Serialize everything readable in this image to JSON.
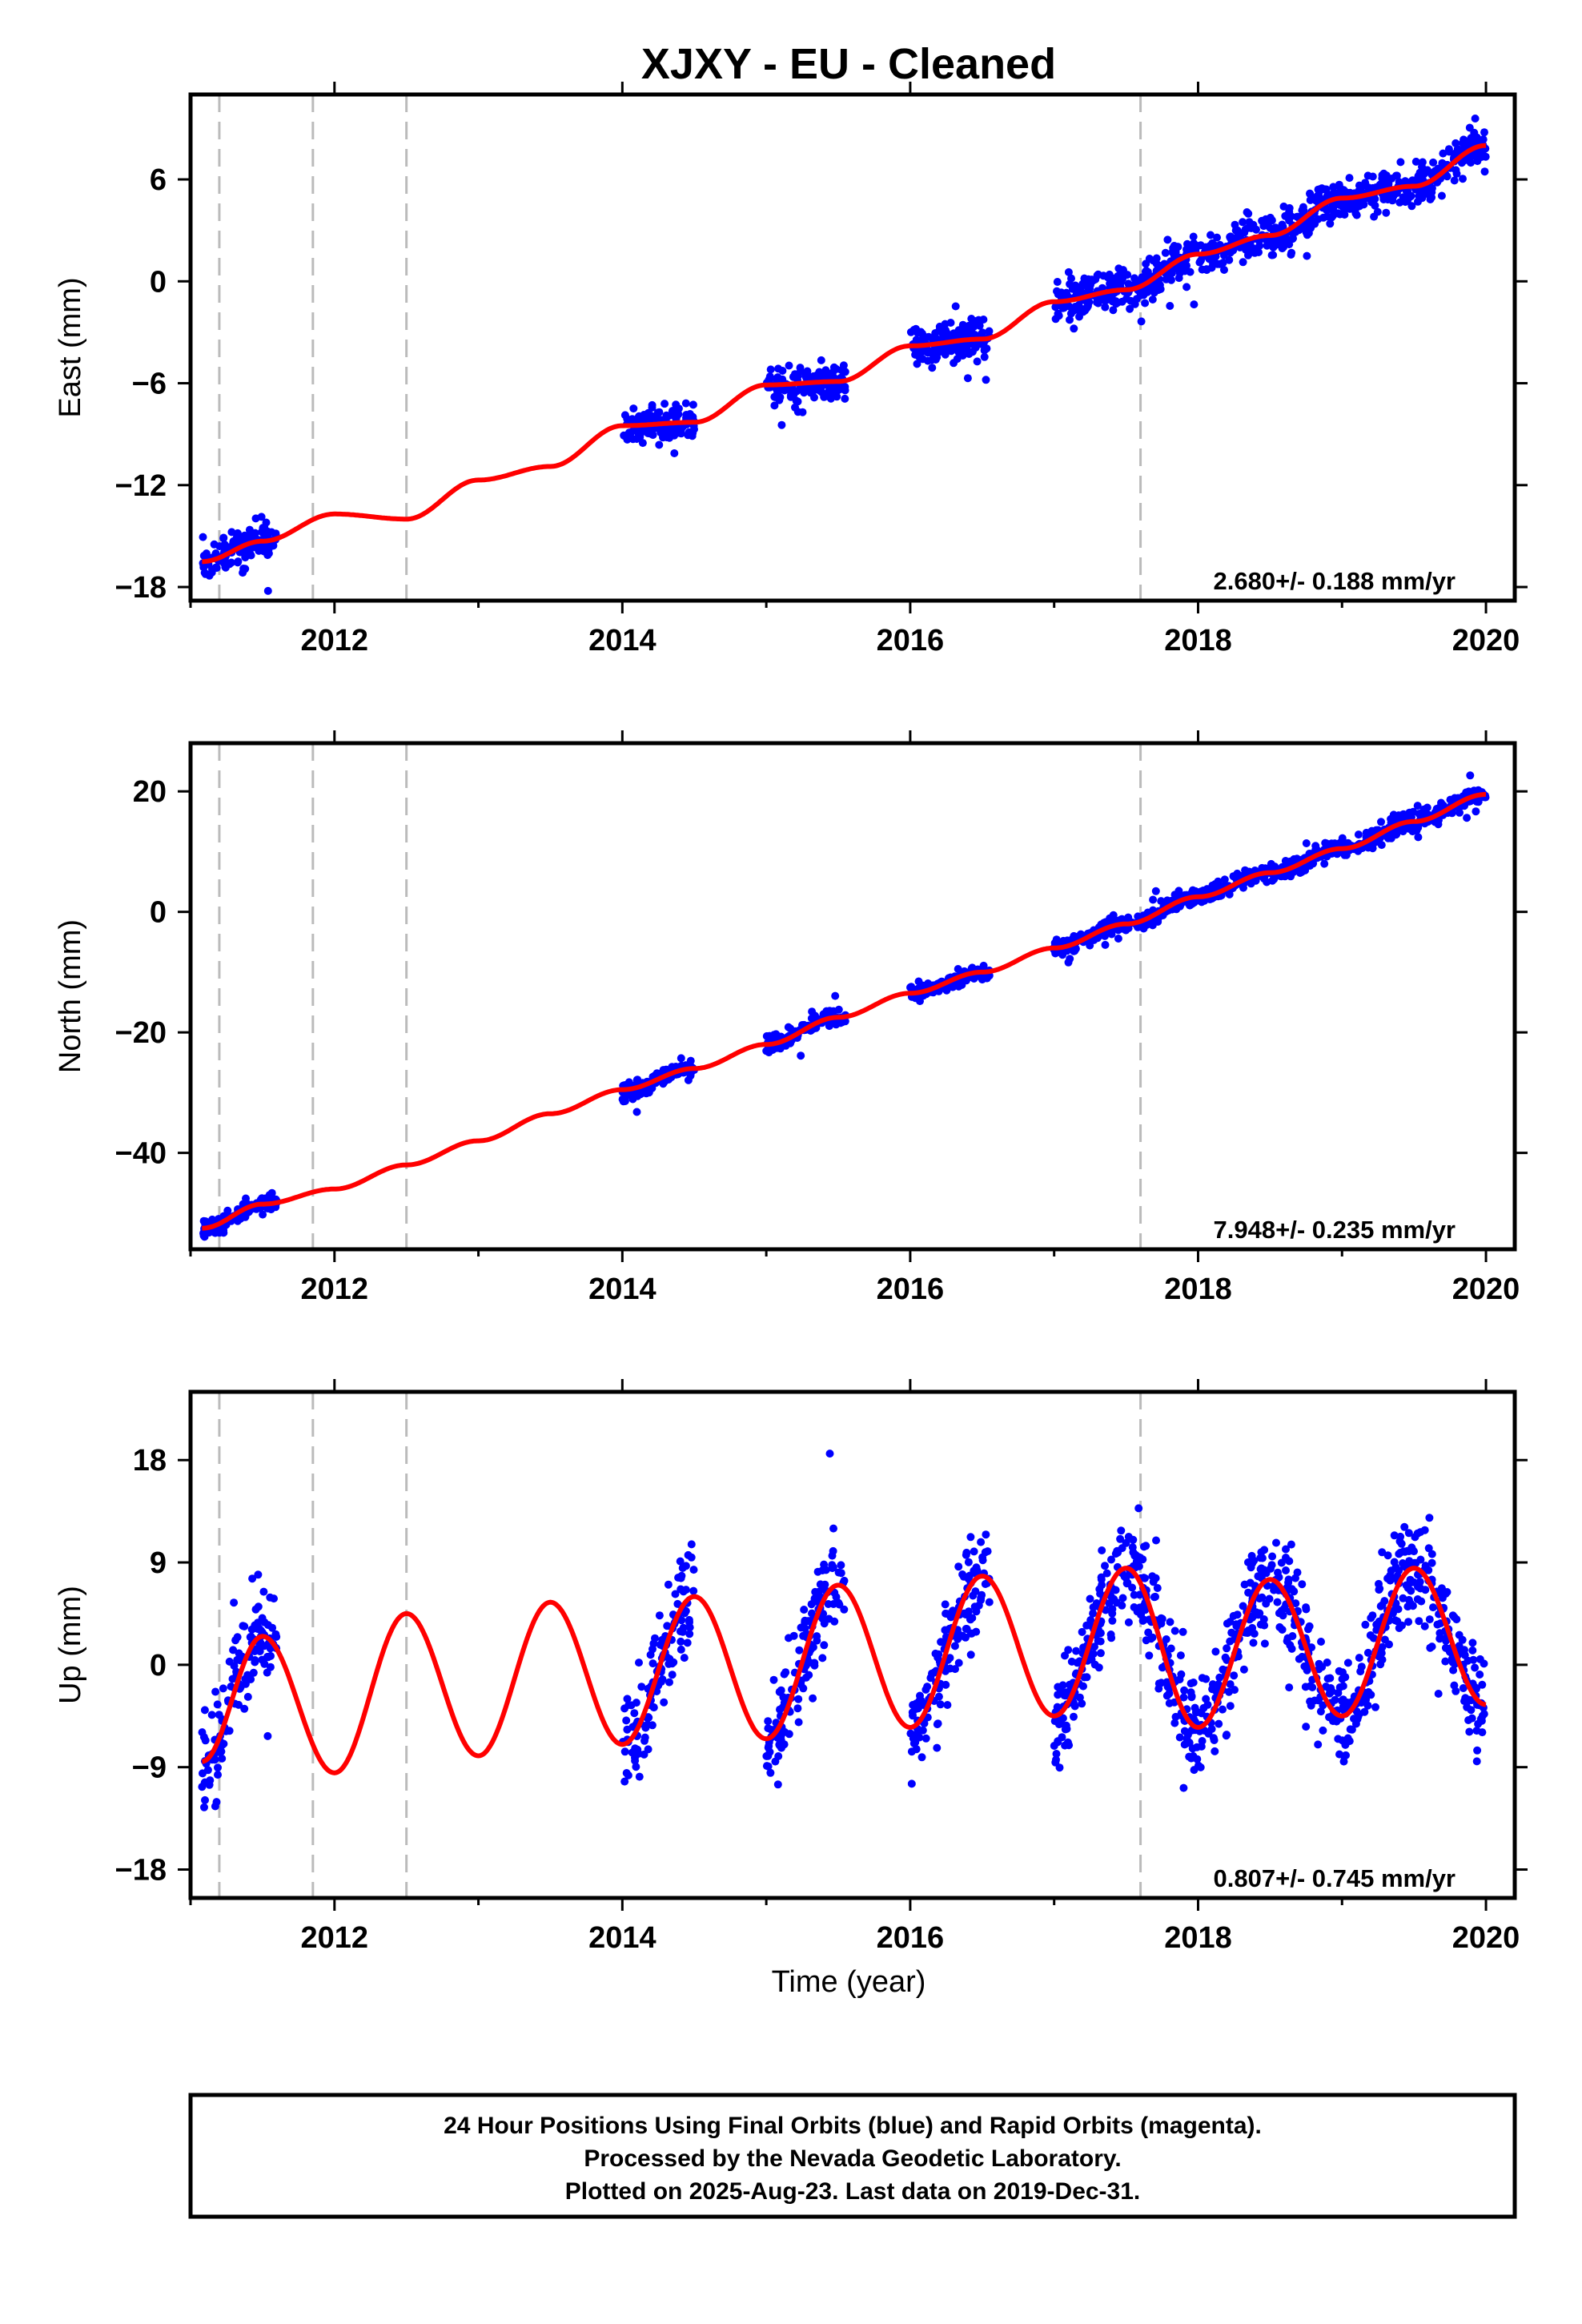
{
  "figure": {
    "title": "XJXY  - EU - Cleaned",
    "xlabel": "Time (year)",
    "x_ticks": [
      2012,
      2014,
      2016,
      2018,
      2020
    ],
    "x_range": [
      2011.0,
      2020.2
    ],
    "offset_epochs": [
      2011.2,
      2011.85,
      2012.5,
      2017.6
    ],
    "data_color": "#0000ff",
    "model_color": "#ff0000",
    "offset_line_color": "#bbbbbb"
  },
  "chart_data": [
    {
      "type": "scatter",
      "component": "east",
      "ylabel": "East (mm)",
      "yticks": [
        6,
        0,
        -6,
        -12,
        -18
      ],
      "ylim": [
        -18.8,
        11
      ],
      "rate_label": "2.680+/- 0.188 mm/yr",
      "rate": 2.68,
      "rate_uncertainty": 0.188,
      "data_intervals": [
        [
          2011.08,
          2011.6
        ],
        [
          2014.0,
          2014.5
        ],
        [
          2015.0,
          2015.55
        ],
        [
          2016.0,
          2016.55
        ],
        [
          2017.0,
          2020.0
        ]
      ],
      "model": {
        "x": [
          2011.08,
          2011.5,
          2012.0,
          2012.5,
          2013.0,
          2013.5,
          2014.0,
          2014.5,
          2015.0,
          2015.5,
          2016.0,
          2016.5,
          2017.0,
          2017.5,
          2018.0,
          2018.5,
          2019.0,
          2019.5,
          2020.0
        ],
        "y": [
          -16.5,
          -15.3,
          -13.7,
          -14.0,
          -11.7,
          -10.9,
          -8.5,
          -8.3,
          -6.1,
          -5.9,
          -3.8,
          -3.4,
          -1.2,
          -0.5,
          1.6,
          2.7,
          4.9,
          5.6,
          8.0
        ]
      }
    },
    {
      "type": "scatter",
      "component": "north",
      "ylabel": "North (mm)",
      "yticks": [
        20,
        0,
        -20,
        -40
      ],
      "ylim": [
        -56,
        28
      ],
      "rate_label": "7.948+/- 0.235 mm/yr",
      "rate": 7.948,
      "rate_uncertainty": 0.235,
      "data_intervals": [
        [
          2011.08,
          2011.6
        ],
        [
          2014.0,
          2014.5
        ],
        [
          2015.0,
          2015.55
        ],
        [
          2016.0,
          2016.55
        ],
        [
          2017.0,
          2020.0
        ]
      ],
      "model": {
        "x": [
          2011.08,
          2011.5,
          2012.0,
          2012.5,
          2013.0,
          2013.5,
          2014.0,
          2014.5,
          2015.0,
          2015.5,
          2016.0,
          2016.5,
          2017.0,
          2017.5,
          2018.0,
          2018.5,
          2019.0,
          2019.5,
          2020.0
        ],
        "y": [
          -52.5,
          -48.5,
          -46.0,
          -42.0,
          -38.0,
          -33.5,
          -29.5,
          -26.0,
          -22.0,
          -17.5,
          -13.5,
          -10.0,
          -6.0,
          -2.0,
          2.5,
          6.5,
          10.5,
          15.0,
          19.5
        ]
      }
    },
    {
      "type": "scatter",
      "component": "up",
      "ylabel": "Up (mm)",
      "yticks": [
        18,
        9,
        0,
        -9,
        -18
      ],
      "ylim": [
        -20.5,
        24
      ],
      "rate_label": "0.807+/- 0.745 mm/yr",
      "rate": 0.807,
      "rate_uncertainty": 0.745,
      "data_intervals": [
        [
          2011.08,
          2011.6
        ],
        [
          2014.0,
          2014.5
        ],
        [
          2015.0,
          2015.55
        ],
        [
          2016.0,
          2016.55
        ],
        [
          2017.0,
          2020.0
        ]
      ],
      "model": {
        "x": [
          2011.08,
          2011.5,
          2012.0,
          2012.5,
          2013.0,
          2013.5,
          2014.0,
          2014.5,
          2015.0,
          2015.5,
          2016.0,
          2016.5,
          2017.0,
          2017.5,
          2018.0,
          2018.5,
          2019.0,
          2019.5,
          2020.0
        ],
        "y": [
          -8.5,
          2.5,
          -9.5,
          4.5,
          -8.0,
          5.5,
          -7.0,
          6.0,
          -6.5,
          7.0,
          -5.5,
          7.8,
          -4.5,
          8.5,
          -5.5,
          7.5,
          -4.5,
          8.5,
          -3.5
        ]
      }
    }
  ],
  "footer": {
    "line1": "24 Hour Positions Using Final Orbits (blue) and Rapid Orbits (magenta).",
    "line2": "Processed by the Nevada Geodetic Laboratory.",
    "line3": "Plotted on 2025-Aug-23. Last data on 2019-Dec-31."
  }
}
